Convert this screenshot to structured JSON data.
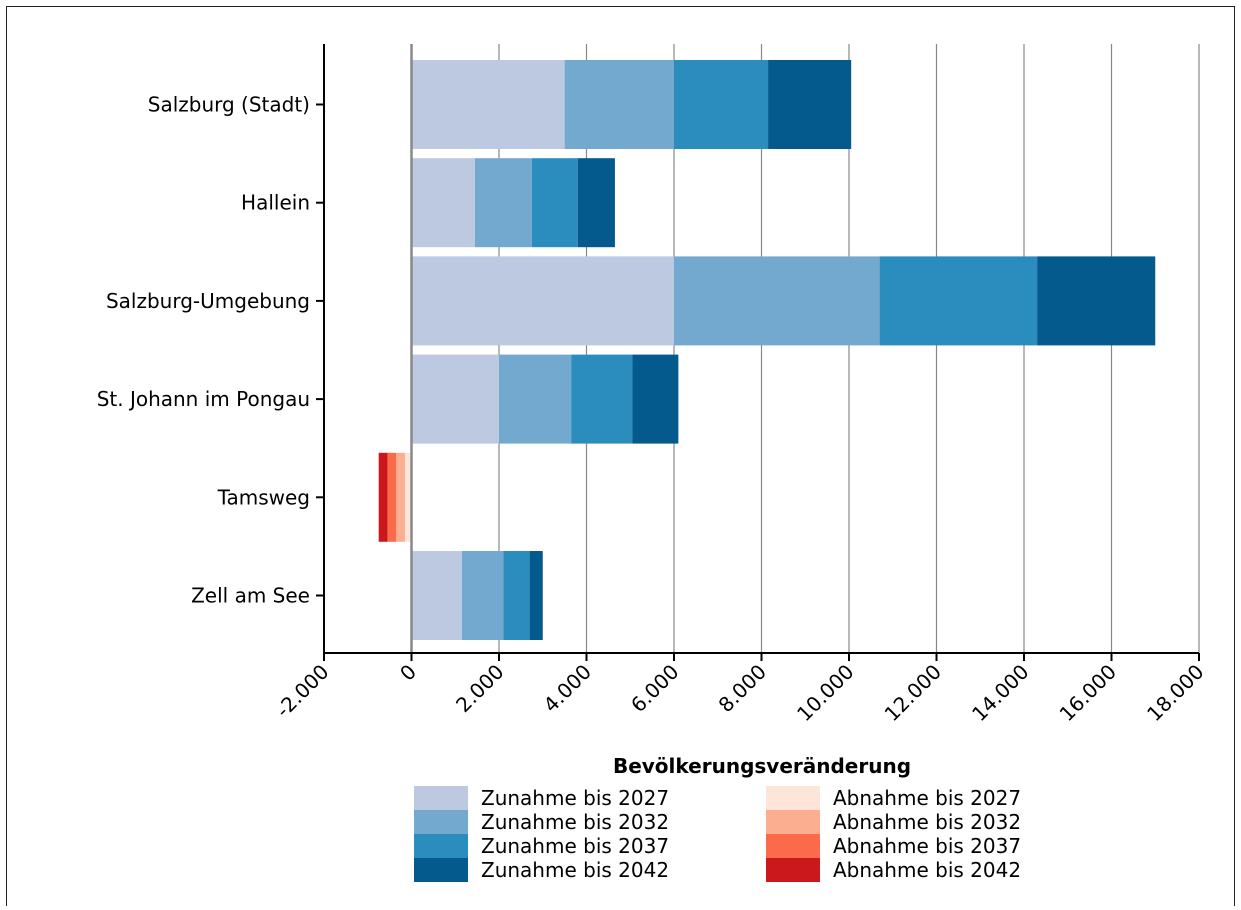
{
  "chart_data": {
    "type": "bar",
    "orientation": "horizontal",
    "stacked": true,
    "categories": [
      "Salzburg (Stadt)",
      "Hallein",
      "Salzburg-Umgebung",
      "St. Johann im Pongau",
      "Tamsweg",
      "Zell am See"
    ],
    "xlabel": "Bevölkerungsveränderung",
    "xlim": [
      -2000,
      18000
    ],
    "xticks": [
      -2000,
      0,
      2000,
      4000,
      6000,
      8000,
      10000,
      12000,
      14000,
      16000,
      18000
    ],
    "xtick_labels": [
      "-2.000",
      "0",
      "2.000",
      "4.000",
      "6.000",
      "8.000",
      "10.000",
      "12.000",
      "14.000",
      "16.000",
      "18.000"
    ],
    "grid": "vertical",
    "legend_position": "bottom",
    "series": [
      {
        "name": "Zunahme bis 2027",
        "color": "#bdc9e1",
        "values": [
          3500,
          1450,
          6000,
          2000,
          0,
          1150
        ]
      },
      {
        "name": "Zunahme bis 2032",
        "color": "#74a9cf",
        "values": [
          2500,
          1300,
          4700,
          1650,
          0,
          950
        ]
      },
      {
        "name": "Zunahme bis 2037",
        "color": "#2b8cbe",
        "values": [
          2150,
          1050,
          3600,
          1400,
          0,
          600
        ]
      },
      {
        "name": "Zunahme bis 2042",
        "color": "#045a8d",
        "values": [
          1900,
          850,
          2700,
          1050,
          0,
          300
        ]
      },
      {
        "name": "Abnahme bis 2027",
        "color": "#fee5d9",
        "values": [
          0,
          0,
          0,
          0,
          -150,
          0
        ]
      },
      {
        "name": "Abnahme bis 2032",
        "color": "#fcae91",
        "values": [
          0,
          0,
          0,
          0,
          -200,
          0
        ]
      },
      {
        "name": "Abnahme bis 2037",
        "color": "#fb6a4a",
        "values": [
          0,
          0,
          0,
          0,
          -200,
          0
        ]
      },
      {
        "name": "Abnahme bis 2042",
        "color": "#cb181d",
        "values": [
          0,
          0,
          0,
          0,
          -200,
          0
        ]
      }
    ]
  }
}
